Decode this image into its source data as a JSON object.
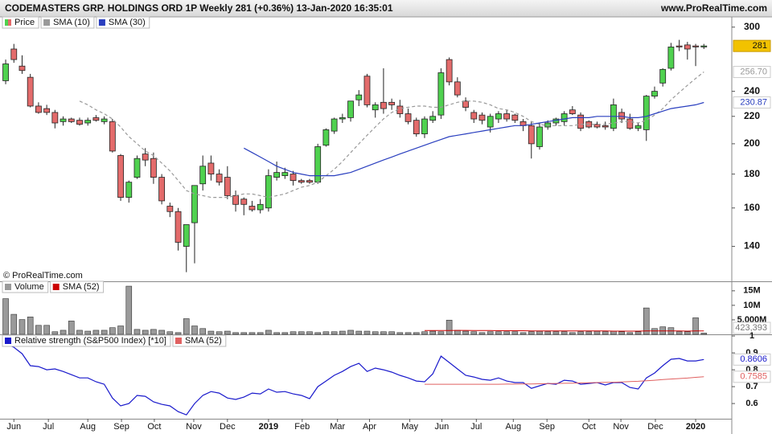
{
  "header": {
    "title": "CODEMASTERS GRP. HOLDINGS ORD 1P Weekly 281 (+0.36%) 13-Jan-2020 16:35:01",
    "site": "www.ProRealTime.com"
  },
  "watermark": "© ProRealTime.com",
  "chart_data": [
    {
      "type": "candlestick",
      "name": "Price",
      "log_scale": true,
      "up_color": "#4fd14f",
      "down_color": "#e36b6b",
      "ylim": [
        124,
        310
      ],
      "yticks": [
        140,
        160,
        180,
        200,
        220,
        240,
        300
      ],
      "open": [
        249,
        278,
        262,
        252,
        228,
        226,
        223,
        216,
        218,
        217,
        215,
        219,
        216,
        216,
        192,
        166,
        178,
        193,
        190,
        178,
        161,
        158,
        140,
        152,
        174,
        187,
        180,
        178,
        167,
        165,
        161,
        159,
        160,
        178,
        179,
        180,
        176,
        176,
        175,
        199,
        209,
        218,
        219,
        233,
        253,
        225,
        231,
        231,
        228,
        222,
        217,
        207,
        217,
        221,
        268,
        248,
        232,
        223,
        221,
        212,
        218,
        222,
        221,
        216,
        213,
        198,
        212,
        215,
        216,
        225,
        221,
        216,
        214,
        213,
        211,
        223,
        218,
        211,
        210,
        236,
        247,
        260,
        281,
        282,
        281,
        280
      ],
      "high": [
        268,
        283,
        272,
        255,
        231,
        229,
        225,
        220,
        219,
        219,
        219,
        221,
        220,
        218,
        193,
        176,
        192,
        197,
        194,
        180,
        163,
        160,
        150,
        173,
        192,
        192,
        183,
        185,
        170,
        166,
        164,
        165,
        183,
        188,
        184,
        182,
        177,
        177,
        200,
        211,
        219,
        222,
        232,
        241,
        255,
        231,
        260,
        234,
        233,
        226,
        219,
        220,
        224,
        260,
        270,
        252,
        235,
        225,
        223,
        222,
        224,
        225,
        222,
        218,
        216,
        215,
        217,
        219,
        224,
        228,
        223,
        217,
        216,
        216,
        234,
        226,
        222,
        215,
        237,
        244,
        260,
        284,
        287,
        285,
        283,
        283
      ],
      "low": [
        246,
        265,
        255,
        227,
        222,
        221,
        211,
        213,
        215,
        213,
        213,
        216,
        214,
        194,
        164,
        163,
        177,
        185,
        174,
        162,
        155,
        138,
        128,
        132,
        170,
        176,
        173,
        165,
        158,
        156,
        158,
        157,
        158,
        176,
        177,
        173,
        174,
        174,
        174,
        198,
        207,
        215,
        216,
        228,
        227,
        219,
        222,
        225,
        219,
        214,
        205,
        204,
        215,
        218,
        245,
        235,
        224,
        215,
        214,
        208,
        215,
        216,
        215,
        209,
        190,
        196,
        210,
        213,
        213,
        221,
        209,
        211,
        211,
        210,
        209,
        215,
        210,
        209,
        202,
        234,
        244,
        258,
        276,
        268,
        262,
        278
      ],
      "close": [
        264,
        268,
        258,
        228,
        223,
        223,
        215,
        218,
        216,
        214,
        217,
        217,
        218,
        195,
        166,
        175,
        190,
        189,
        178,
        164,
        158,
        142,
        151,
        173,
        185,
        180,
        175,
        167,
        162,
        162,
        159,
        162,
        179,
        181,
        181,
        176,
        175,
        175,
        198,
        210,
        218,
        219,
        232,
        237,
        229,
        229,
        226,
        229,
        222,
        216,
        207,
        218,
        220,
        256,
        248,
        237,
        227,
        218,
        217,
        220,
        222,
        218,
        217,
        213,
        200,
        212,
        215,
        218,
        222,
        222,
        211,
        212,
        212,
        212,
        229,
        218,
        211,
        213,
        236,
        240,
        259,
        280,
        280,
        278,
        280,
        281
      ],
      "series": [
        {
          "name": "SMA (10)",
          "color": "#999999",
          "dashed": true,
          "values": [
            null,
            null,
            null,
            null,
            null,
            null,
            null,
            null,
            null,
            232,
            229,
            225,
            222,
            218,
            212,
            205,
            200,
            195,
            192,
            187,
            182,
            176,
            170,
            168,
            167,
            166,
            166,
            166,
            167,
            168,
            168,
            167,
            166,
            167,
            168,
            170,
            172,
            173,
            175,
            179,
            183,
            188,
            194,
            200,
            206,
            212,
            218,
            223,
            226,
            227,
            228,
            228,
            227,
            227,
            229,
            231,
            232,
            232,
            231,
            229,
            226,
            225,
            223,
            220,
            216,
            214,
            213,
            213,
            213,
            213,
            214,
            214,
            214,
            214,
            215,
            216,
            216,
            215,
            217,
            221,
            226,
            233,
            239,
            245,
            251,
            256.7
          ],
          "value_labels": {
            "85": "256.70"
          }
        },
        {
          "name": "SMA (30)",
          "color": "#2a3fbf",
          "dashed": false,
          "values": [
            null,
            null,
            null,
            null,
            null,
            null,
            null,
            null,
            null,
            null,
            null,
            null,
            null,
            null,
            null,
            null,
            null,
            null,
            null,
            null,
            null,
            null,
            null,
            null,
            null,
            null,
            null,
            null,
            null,
            197,
            194,
            191,
            188,
            185,
            183,
            181,
            180,
            179,
            179,
            179,
            179,
            180,
            181,
            183,
            185,
            187,
            189,
            191,
            193,
            195,
            197,
            199,
            201,
            203,
            205,
            206,
            207,
            208,
            209,
            210,
            211,
            212,
            213,
            213,
            214,
            215,
            216,
            217,
            218,
            219,
            219,
            219,
            220,
            220,
            220,
            220,
            219,
            219,
            220,
            222,
            224,
            226,
            227,
            228,
            229,
            230.87
          ]
        }
      ]
    },
    {
      "type": "bar",
      "name": "Volume",
      "color": "#9a9a9a",
      "ylim": [
        0,
        18000000
      ],
      "yticks": [
        {
          "value": 5000000,
          "label": "5.000M"
        },
        {
          "value": 10000000,
          "label": "10M"
        },
        {
          "value": 15000000,
          "label": "15M"
        }
      ],
      "values": [
        12300000,
        6900000,
        5100000,
        6000000,
        3100000,
        3100000,
        900000,
        1400000,
        4600000,
        1400000,
        1100000,
        1400000,
        1400000,
        2300000,
        2900000,
        16600000,
        1700000,
        1400000,
        1700000,
        1400000,
        900000,
        600000,
        5400000,
        2900000,
        2000000,
        1100000,
        900000,
        1100000,
        600000,
        600000,
        600000,
        600000,
        1400000,
        600000,
        600000,
        900000,
        900000,
        900000,
        600000,
        900000,
        900000,
        1100000,
        1400000,
        1100000,
        1100000,
        900000,
        900000,
        900000,
        600000,
        600000,
        600000,
        900000,
        1100000,
        900000,
        4900000,
        1400000,
        1100000,
        900000,
        600000,
        900000,
        900000,
        900000,
        900000,
        600000,
        900000,
        1100000,
        900000,
        900000,
        900000,
        600000,
        900000,
        900000,
        1100000,
        900000,
        1100000,
        900000,
        600000,
        900000,
        9100000,
        2000000,
        2600000,
        2300000,
        900000,
        900000,
        5700000,
        423393
      ],
      "value_labels": {
        "85": "423,393"
      },
      "series": [
        {
          "name": "SMA (52)",
          "color": "#cc0000",
          "values": [
            null,
            null,
            null,
            null,
            null,
            null,
            null,
            null,
            null,
            null,
            null,
            null,
            null,
            null,
            null,
            null,
            null,
            null,
            null,
            null,
            null,
            null,
            null,
            null,
            null,
            null,
            null,
            null,
            null,
            null,
            null,
            null,
            null,
            null,
            null,
            null,
            null,
            null,
            null,
            null,
            null,
            null,
            null,
            null,
            null,
            null,
            null,
            null,
            null,
            null,
            null,
            1300000,
            1300000,
            1300000,
            1300000,
            1350000,
            1350000,
            1300000,
            1300000,
            1300000,
            1250000,
            1250000,
            1250000,
            1250000,
            1200000,
            1200000,
            1200000,
            1200000,
            1200000,
            1150000,
            1150000,
            1150000,
            1150000,
            1150000,
            1100000,
            1100000,
            1100000,
            1100000,
            1150000,
            1150000,
            1150000,
            1150000,
            1150000,
            1100000,
            1150000,
            1150000
          ]
        }
      ]
    },
    {
      "type": "line",
      "ylim": [
        0.51,
        1.005
      ],
      "yticks": [
        0.6,
        0.7,
        0.8,
        0.9,
        1
      ],
      "xlim": [
        -0.69,
        88.4
      ],
      "xticks": [
        {
          "value": 1,
          "label": "Jun"
        },
        {
          "value": 5.2,
          "label": "Jul"
        },
        {
          "value": 10,
          "label": "Aug"
        },
        {
          "value": 14.1,
          "label": "Sep"
        },
        {
          "value": 18.1,
          "label": "Oct"
        },
        {
          "value": 22.9,
          "label": "Nov"
        },
        {
          "value": 27,
          "label": "Dec"
        },
        {
          "value": 32,
          "label": "2019"
        },
        {
          "value": 36.1,
          "label": "Feb"
        },
        {
          "value": 40.4,
          "label": "Mar"
        },
        {
          "value": 44.3,
          "label": "Apr"
        },
        {
          "value": 49.2,
          "label": "May"
        },
        {
          "value": 53.1,
          "label": "Jun"
        },
        {
          "value": 57.3,
          "label": "Jul"
        },
        {
          "value": 61.8,
          "label": "Aug"
        },
        {
          "value": 65.9,
          "label": "Sep"
        },
        {
          "value": 71,
          "label": "Oct"
        },
        {
          "value": 74.9,
          "label": "Nov"
        },
        {
          "value": 79.1,
          "label": "Dec"
        },
        {
          "value": 84,
          "label": "2020"
        }
      ],
      "series": [
        {
          "name": "Relative strength (S&P500 Index) [*10]",
          "color": "#1a1acc",
          "values": [
            0.952,
            0.933,
            0.895,
            0.824,
            0.819,
            0.8,
            0.805,
            0.79,
            0.771,
            0.752,
            0.752,
            0.729,
            0.714,
            0.633,
            0.586,
            0.6,
            0.648,
            0.643,
            0.61,
            0.595,
            0.586,
            0.552,
            0.533,
            0.6,
            0.648,
            0.671,
            0.662,
            0.633,
            0.624,
            0.638,
            0.662,
            0.657,
            0.686,
            0.667,
            0.671,
            0.657,
            0.648,
            0.629,
            0.7,
            0.733,
            0.767,
            0.79,
            0.819,
            0.838,
            0.79,
            0.81,
            0.8,
            0.786,
            0.767,
            0.752,
            0.733,
            0.729,
            0.776,
            0.881,
            0.843,
            0.805,
            0.767,
            0.757,
            0.743,
            0.738,
            0.752,
            0.733,
            0.724,
            0.724,
            0.69,
            0.705,
            0.719,
            0.714,
            0.738,
            0.733,
            0.714,
            0.719,
            0.724,
            0.71,
            0.724,
            0.724,
            0.695,
            0.686,
            0.752,
            0.781,
            0.824,
            0.862,
            0.867,
            0.852,
            0.852,
            0.8606
          ]
        },
        {
          "name": "SMA (52)",
          "color": "#e06060",
          "values": [
            null,
            null,
            null,
            null,
            null,
            null,
            null,
            null,
            null,
            null,
            null,
            null,
            null,
            null,
            null,
            null,
            null,
            null,
            null,
            null,
            null,
            null,
            null,
            null,
            null,
            null,
            null,
            null,
            null,
            null,
            null,
            null,
            null,
            null,
            null,
            null,
            null,
            null,
            null,
            null,
            null,
            null,
            null,
            null,
            null,
            null,
            null,
            null,
            null,
            null,
            null,
            0.714,
            0.714,
            0.714,
            0.714,
            0.714,
            0.714,
            0.714,
            0.714,
            0.714,
            0.714,
            0.715,
            0.715,
            0.716,
            0.716,
            0.717,
            0.718,
            0.719,
            0.72,
            0.721,
            0.722,
            0.723,
            0.724,
            0.725,
            0.726,
            0.728,
            0.73,
            0.732,
            0.735,
            0.738,
            0.742,
            0.745,
            0.748,
            0.751,
            0.755,
            0.7585
          ]
        }
      ]
    }
  ]
}
